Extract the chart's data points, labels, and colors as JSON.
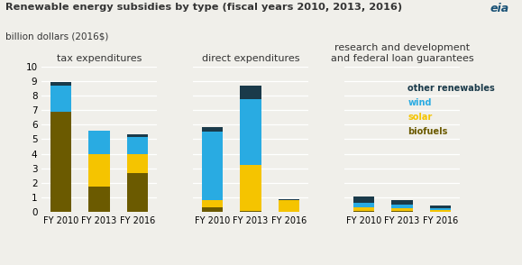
{
  "title": "Renewable energy subsidies by type (fiscal years 2010, 2013, 2016)",
  "subtitle": "billion dollars (2016$)",
  "panel_titles": [
    "tax expenditures",
    "direct expenditures",
    "research and development\nand federal loan guarantees"
  ],
  "years": [
    "FY 2010",
    "FY 2013",
    "FY 2016"
  ],
  "colors": {
    "biofuels": "#6b5a00",
    "solar": "#f5c400",
    "wind": "#29abe2",
    "other_renewables": "#1a3a4a"
  },
  "legend_text_colors": {
    "other renewables": "#1a3a4a",
    "wind": "#29abe2",
    "solar": "#f5c400",
    "biofuels": "#6b5a00"
  },
  "tax_expenditures": {
    "biofuels": [
      6.9,
      1.75,
      2.65
    ],
    "solar": [
      0.0,
      2.2,
      1.3
    ],
    "wind": [
      1.75,
      1.65,
      1.2
    ],
    "other": [
      0.25,
      0.0,
      0.15
    ]
  },
  "direct_expenditures": {
    "biofuels": [
      0.3,
      0.1,
      0.0
    ],
    "solar": [
      0.5,
      3.15,
      0.8
    ],
    "wind": [
      4.7,
      4.5,
      0.0
    ],
    "other": [
      0.3,
      0.9,
      0.1
    ]
  },
  "rd_loan": {
    "biofuels": [
      0.05,
      0.05,
      0.02
    ],
    "solar": [
      0.3,
      0.2,
      0.1
    ],
    "wind": [
      0.3,
      0.25,
      0.15
    ],
    "other": [
      0.4,
      0.3,
      0.15
    ]
  },
  "ylim": [
    0,
    10
  ],
  "yticks": [
    0,
    1,
    2,
    3,
    4,
    5,
    6,
    7,
    8,
    9,
    10
  ],
  "background_color": "#f0efea",
  "legend_labels": [
    "other renewables",
    "wind",
    "solar",
    "biofuels"
  ]
}
